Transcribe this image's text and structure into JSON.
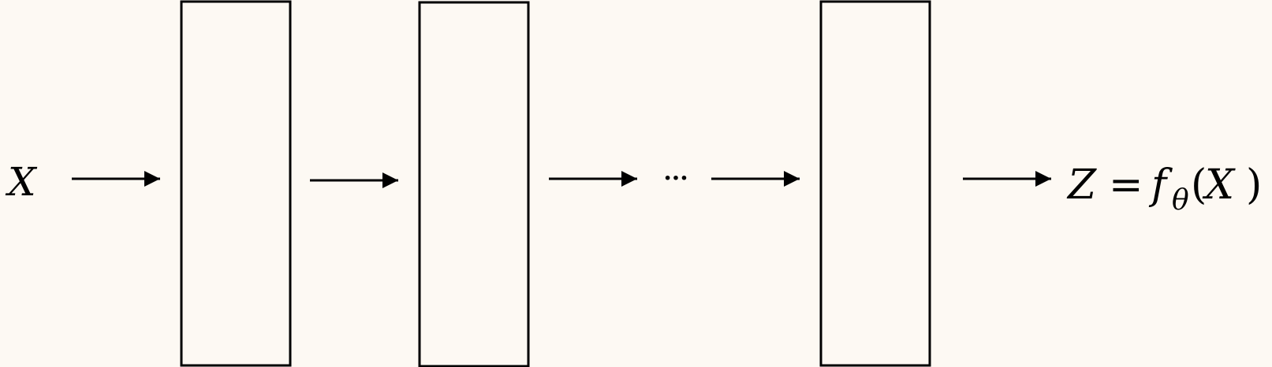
{
  "diagram": {
    "input_label": "X",
    "ellipsis": "···",
    "output": {
      "var": "Z",
      "equals": "=",
      "func": "f",
      "subscript": "θ",
      "open_paren": "(",
      "arg": "X",
      "close_paren": ")"
    },
    "layer_count_shown": 3
  },
  "colors": {
    "background": "#fdf9f3",
    "stroke": "#000000"
  }
}
